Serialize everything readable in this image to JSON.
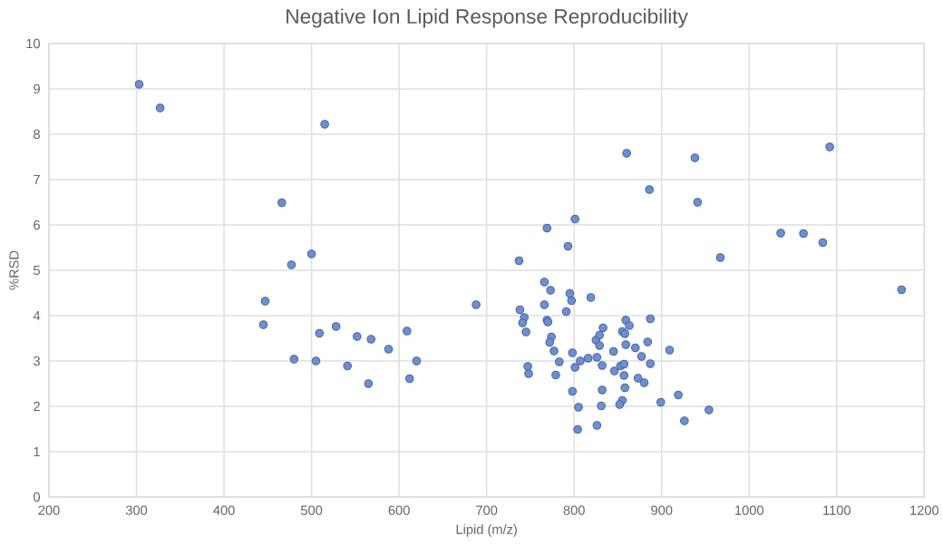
{
  "chart_data": {
    "type": "scatter",
    "title": "Negative Ion Lipid Response Reproducibility",
    "xlabel": "Lipid (m/z)",
    "ylabel": "%RSD",
    "xlim": [
      200,
      1200
    ],
    "xticks": [
      200,
      300,
      400,
      500,
      600,
      700,
      800,
      900,
      1000,
      1100,
      1200
    ],
    "ylim": [
      0,
      10
    ],
    "yticks": [
      0,
      1,
      2,
      3,
      4,
      5,
      6,
      7,
      8,
      9,
      10
    ],
    "grid": true,
    "marker": "circle",
    "series": [
      {
        "color": "#6a8fd8",
        "x": [
          303,
          327,
          515,
          466,
          500,
          477,
          447,
          688,
          445,
          528,
          509,
          552,
          568,
          609,
          588,
          480,
          505,
          620,
          541,
          612,
          565,
          860,
          938,
          1092,
          886,
          941,
          801,
          769,
          793,
          737,
          967,
          1036,
          1062,
          1084,
          1174,
          766,
          773,
          795,
          797,
          819,
          738,
          766,
          743,
          741,
          745,
          769,
          770,
          791,
          774,
          772,
          777,
          783,
          779,
          747,
          748,
          798,
          801,
          807,
          816,
          826,
          798,
          805,
          804,
          826,
          831,
          832,
          832,
          825,
          829,
          829,
          833,
          845,
          846,
          853,
          857,
          857,
          858,
          855,
          852,
          855,
          858,
          859,
          863,
          859,
          870,
          877,
          884,
          887,
          887,
          873,
          880,
          909,
          899,
          919,
          926,
          954
        ],
        "values": [
          9.1,
          8.58,
          8.22,
          6.49,
          5.36,
          5.12,
          4.32,
          4.24,
          3.8,
          3.76,
          3.61,
          3.54,
          3.48,
          3.66,
          3.26,
          3.04,
          3.0,
          3.0,
          2.89,
          2.61,
          2.5,
          7.58,
          7.48,
          7.72,
          6.78,
          6.5,
          6.13,
          5.93,
          5.53,
          5.21,
          5.28,
          5.82,
          5.81,
          5.61,
          4.57,
          4.74,
          4.56,
          4.49,
          4.33,
          4.4,
          4.13,
          4.24,
          3.96,
          3.84,
          3.64,
          3.9,
          3.86,
          4.09,
          3.53,
          3.41,
          3.22,
          2.98,
          2.69,
          2.88,
          2.72,
          3.18,
          2.86,
          3.0,
          3.06,
          3.08,
          2.33,
          1.98,
          1.49,
          1.58,
          2.01,
          2.36,
          2.9,
          3.46,
          3.34,
          3.57,
          3.73,
          3.21,
          2.78,
          2.89,
          2.93,
          2.68,
          2.41,
          2.13,
          2.04,
          3.65,
          3.6,
          3.9,
          3.78,
          3.36,
          3.29,
          3.1,
          3.42,
          3.93,
          2.94,
          2.62,
          2.52,
          3.24,
          2.09,
          2.25,
          1.68,
          1.92
        ]
      }
    ]
  }
}
